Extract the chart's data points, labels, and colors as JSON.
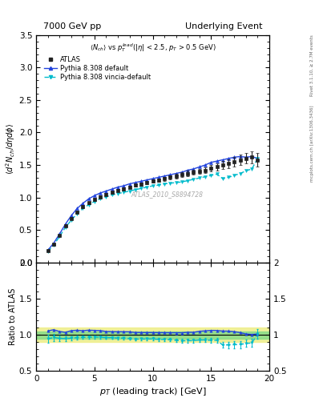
{
  "title_left": "7000 GeV pp",
  "title_right": "Underlying Event",
  "ylabel_main": "$\\langle d^2 N_{ch}/d\\eta d\\phi \\rangle$",
  "ylabel_ratio": "Ratio to ATLAS",
  "xlabel": "$p_T$ (leading track) [GeV]",
  "annotation_main": "$\\langle N_{ch}\\rangle$ vs $p_T^{lead}$(|$\\eta$| < 2.5, $p_T$ > 0.5 GeV)",
  "watermark": "ATLAS_2010_S8894728",
  "right_label": "Rivet 3.1.10, ≥ 2.7M events",
  "right_label2": "mcplots.cern.ch [arXiv:1306.3436]",
  "ylim_main": [
    0,
    3.5
  ],
  "ylim_ratio": [
    0.5,
    2.0
  ],
  "xlim": [
    0,
    20
  ],
  "data_atlas_x": [
    1.0,
    1.5,
    2.0,
    2.5,
    3.0,
    3.5,
    4.0,
    4.5,
    5.0,
    5.5,
    6.0,
    6.5,
    7.0,
    7.5,
    8.0,
    8.5,
    9.0,
    9.5,
    10.0,
    10.5,
    11.0,
    11.5,
    12.0,
    12.5,
    13.0,
    13.5,
    14.0,
    14.5,
    15.0,
    15.5,
    16.0,
    16.5,
    17.0,
    17.5,
    18.0,
    18.5,
    19.0
  ],
  "data_atlas_y": [
    0.18,
    0.28,
    0.42,
    0.57,
    0.68,
    0.78,
    0.86,
    0.92,
    0.97,
    1.01,
    1.05,
    1.08,
    1.11,
    1.13,
    1.16,
    1.19,
    1.21,
    1.23,
    1.25,
    1.27,
    1.29,
    1.31,
    1.33,
    1.35,
    1.37,
    1.39,
    1.4,
    1.42,
    1.45,
    1.47,
    1.5,
    1.52,
    1.55,
    1.58,
    1.6,
    1.62,
    1.58
  ],
  "data_atlas_yerr": [
    0.01,
    0.015,
    0.015,
    0.02,
    0.02,
    0.02,
    0.02,
    0.02,
    0.02,
    0.02,
    0.02,
    0.02,
    0.02,
    0.02,
    0.02,
    0.02,
    0.025,
    0.025,
    0.025,
    0.025,
    0.03,
    0.03,
    0.035,
    0.035,
    0.04,
    0.04,
    0.04,
    0.045,
    0.05,
    0.055,
    0.06,
    0.065,
    0.07,
    0.075,
    0.08,
    0.09,
    0.1
  ],
  "data_pythia_x": [
    1.0,
    1.5,
    2.0,
    2.5,
    3.0,
    3.5,
    4.0,
    4.5,
    5.0,
    5.5,
    6.0,
    6.5,
    7.0,
    7.5,
    8.0,
    8.5,
    9.0,
    9.5,
    10.0,
    10.5,
    11.0,
    11.5,
    12.0,
    12.5,
    13.0,
    13.5,
    14.0,
    14.5,
    15.0,
    15.5,
    16.0,
    16.5,
    17.0,
    17.5,
    18.0,
    18.5,
    19.0
  ],
  "data_pythia_y": [
    0.19,
    0.3,
    0.44,
    0.59,
    0.72,
    0.83,
    0.91,
    0.98,
    1.03,
    1.07,
    1.1,
    1.13,
    1.16,
    1.18,
    1.21,
    1.23,
    1.25,
    1.27,
    1.29,
    1.31,
    1.33,
    1.35,
    1.37,
    1.39,
    1.42,
    1.44,
    1.47,
    1.5,
    1.54,
    1.56,
    1.58,
    1.6,
    1.62,
    1.63,
    1.62,
    1.63,
    1.6
  ],
  "data_vincia_x": [
    1.0,
    1.5,
    2.0,
    2.5,
    3.0,
    3.5,
    4.0,
    4.5,
    5.0,
    5.5,
    6.0,
    6.5,
    7.0,
    7.5,
    8.0,
    8.5,
    9.0,
    9.5,
    10.0,
    10.5,
    11.0,
    11.5,
    12.0,
    12.5,
    13.0,
    13.5,
    14.0,
    14.5,
    15.0,
    15.5,
    16.0,
    16.5,
    17.0,
    17.5,
    18.0,
    18.5,
    19.0
  ],
  "data_vincia_y": [
    0.17,
    0.27,
    0.4,
    0.54,
    0.65,
    0.75,
    0.83,
    0.89,
    0.94,
    0.98,
    1.01,
    1.04,
    1.06,
    1.08,
    1.1,
    1.12,
    1.14,
    1.16,
    1.18,
    1.19,
    1.21,
    1.22,
    1.23,
    1.24,
    1.26,
    1.28,
    1.3,
    1.32,
    1.34,
    1.36,
    1.29,
    1.31,
    1.34,
    1.37,
    1.41,
    1.44,
    1.6
  ],
  "data_vincia_yerr": [
    0.01,
    0.015,
    0.015,
    0.02,
    0.02,
    0.02,
    0.02,
    0.02,
    0.02,
    0.02,
    0.02,
    0.02,
    0.02,
    0.02,
    0.02,
    0.02,
    0.025,
    0.025,
    0.025,
    0.025,
    0.03,
    0.03,
    0.035,
    0.035,
    0.04,
    0.04,
    0.04,
    0.045,
    0.05,
    0.055,
    0.06,
    0.065,
    0.07,
    0.075,
    0.08,
    0.09,
    0.1
  ],
  "color_atlas": "#222222",
  "color_pythia": "#2244dd",
  "color_vincia": "#00bbcc",
  "color_band_green": "#88dd88",
  "color_band_yellow": "#eeee88"
}
